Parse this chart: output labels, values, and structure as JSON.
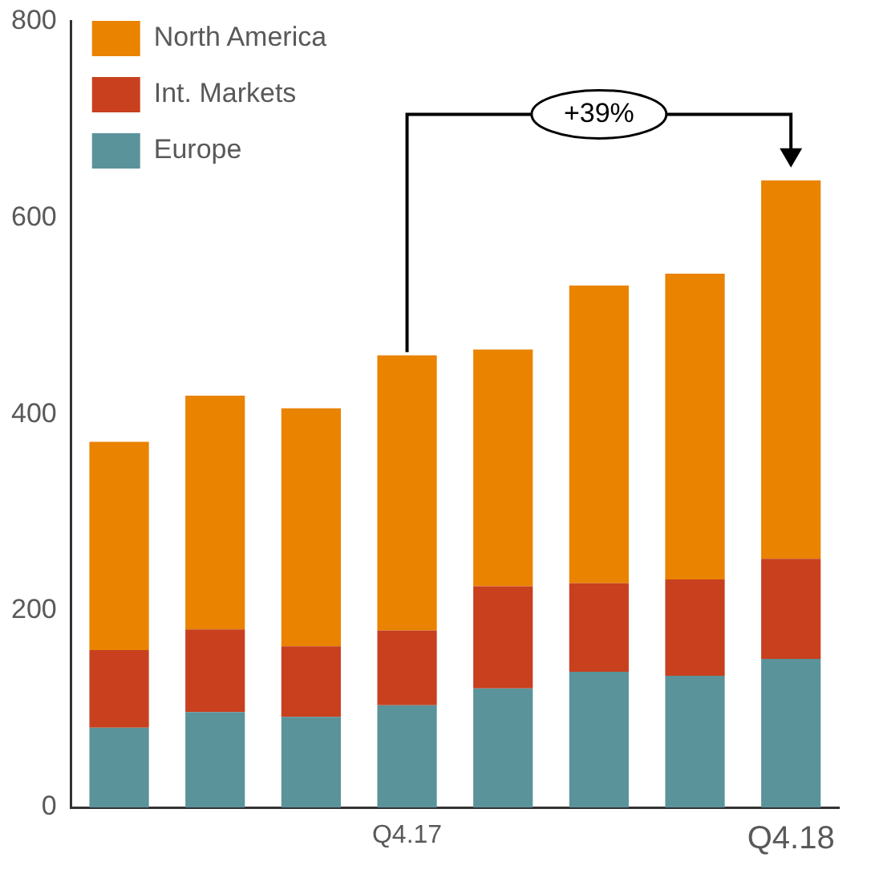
{
  "chart_data": {
    "type": "bar",
    "stacked": true,
    "categories": [
      null,
      null,
      null,
      "Q4.17",
      null,
      null,
      null,
      "Q4.18"
    ],
    "series": [
      {
        "name": "Europe",
        "color": "#5a939a",
        "values": [
          81,
          97,
          92,
          104,
          121,
          138,
          134,
          151
        ]
      },
      {
        "name": "Int. Markets",
        "color": "#c8401e",
        "values": [
          79,
          84,
          72,
          76,
          104,
          90,
          98,
          102
        ]
      },
      {
        "name": "North America",
        "color": "#e98300",
        "values": [
          212,
          238,
          242,
          280,
          241,
          303,
          311,
          385
        ]
      }
    ],
    "ylim": [
      0,
      800
    ],
    "yticks": [
      0,
      200,
      400,
      600,
      800
    ],
    "grid": false,
    "legend": "top left",
    "annotations": [
      {
        "text": "+39%",
        "x": "Q4.17",
        "y": 460
      }
    ]
  }
}
